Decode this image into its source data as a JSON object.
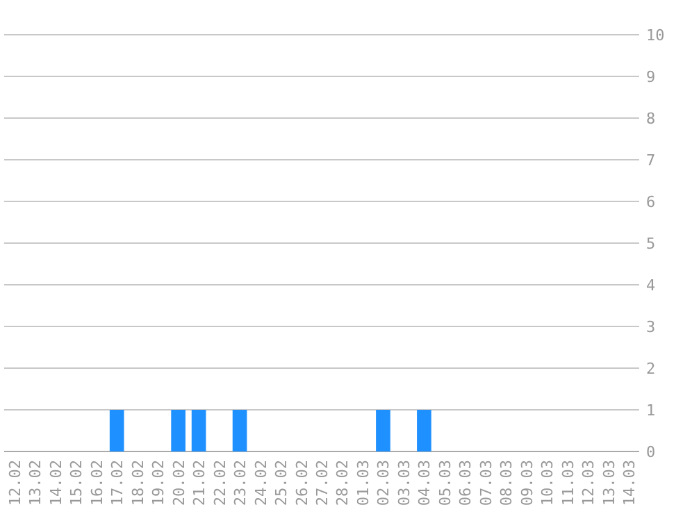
{
  "chart_data": {
    "type": "bar",
    "categories": [
      "12.02",
      "13.02",
      "14.02",
      "15.02",
      "16.02",
      "17.02",
      "18.02",
      "19.02",
      "20.02",
      "21.02",
      "22.02",
      "23.02",
      "24.02",
      "25.02",
      "26.02",
      "27.02",
      "28.02",
      "01.03",
      "02.03",
      "03.03",
      "04.03",
      "05.03",
      "06.03",
      "07.03",
      "08.03",
      "09.03",
      "10.03",
      "11.03",
      "12.03",
      "13.03",
      "14.03"
    ],
    "values": [
      0,
      0,
      0,
      0,
      0,
      1,
      0,
      0,
      1,
      1,
      0,
      1,
      0,
      0,
      0,
      0,
      0,
      0,
      1,
      0,
      1,
      0,
      0,
      0,
      0,
      0,
      0,
      0,
      0,
      0,
      0
    ],
    "color": "#1e90ff",
    "ylim": [
      0,
      10
    ],
    "yticks": [
      0,
      1,
      2,
      3,
      4,
      5,
      6,
      7,
      8,
      9,
      10
    ],
    "grid": "y"
  }
}
